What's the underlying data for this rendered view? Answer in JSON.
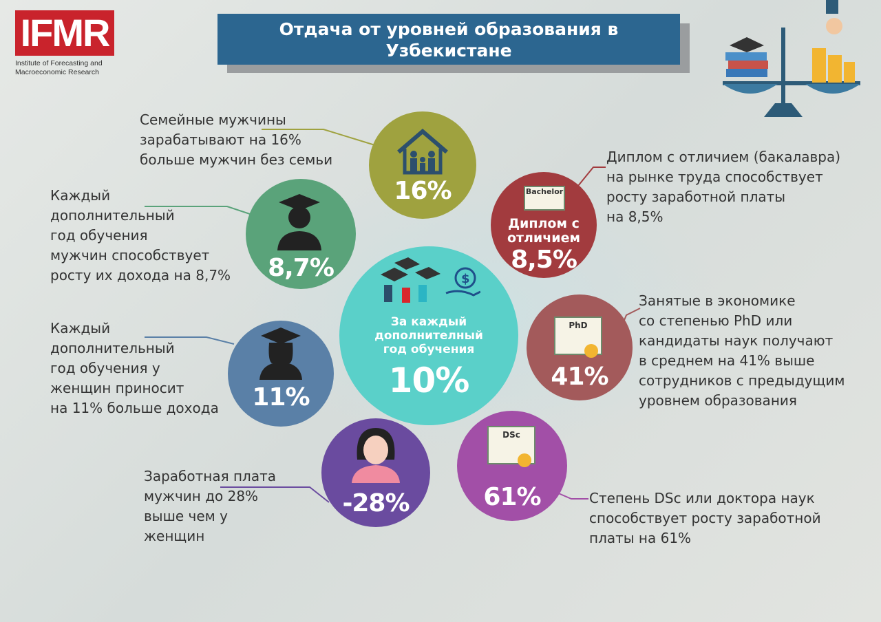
{
  "logo": {
    "text": "IFMR",
    "subtitle_line1": "Institute of Forecasting and",
    "subtitle_line2": "Macroeconomic Research"
  },
  "title": {
    "line1": "Отдача от уровней образования в",
    "line2": "Узбекистане"
  },
  "center": {
    "label_line1": "За каждый",
    "label_line2": "дополнителный",
    "label_line3": "год обучения",
    "value": "10%",
    "color": "#5ad0c9"
  },
  "items": [
    {
      "id": "family-men",
      "value": "16%",
      "color": "#9fa23f",
      "icon": "house-family-icon",
      "text": [
        "Семейные мужчины",
        "зарабатывают на 16%",
        "больше мужчин без семьи"
      ]
    },
    {
      "id": "men-year",
      "value": "8,7%",
      "color": "#5aa37a",
      "icon": "male-graduate-icon",
      "text": [
        "Каждый",
        "дополнительный",
        "год обучения",
        "мужчин способствует",
        "росту их дохода на  8,7%"
      ]
    },
    {
      "id": "women-year",
      "value": "11%",
      "color": "#5a80a7",
      "icon": "female-graduate-icon",
      "text": [
        "Каждый",
        "дополнительный",
        "год обучения у",
        "женщин приносит",
        "на 11% больше дохода"
      ]
    },
    {
      "id": "gender-gap",
      "value": "-28%",
      "color": "#6a4b9f",
      "icon": "woman-avatar-icon",
      "text": [
        "Заработная плата",
        "мужчин  до 28%",
        "выше чем у",
        "женщин"
      ]
    },
    {
      "id": "honors",
      "value": "8,5%",
      "color": "#a23b3e",
      "icon": "bachelor-diploma-icon",
      "badge": "Bachelor",
      "label_line1": "Диплом с",
      "label_line2": "отличием",
      "text": [
        "Диплом с отличием (бакалавра)",
        "на рынке труда способствует",
        "росту заработной платы",
        "на 8,5%"
      ]
    },
    {
      "id": "phd",
      "value": "41%",
      "color": "#a35a5b",
      "icon": "phd-diploma-icon",
      "badge": "PhD",
      "text": [
        "Занятые в экономике",
        "со степенью PhD или",
        "кандидаты наук  получают",
        "в среднем на 41% выше",
        "сотрудников с предыдущим",
        "уровнем образования"
      ]
    },
    {
      "id": "dsc",
      "value": "61%",
      "color": "#a24fa7",
      "icon": "dsc-diploma-icon",
      "badge": "DSc",
      "text": [
        "Степень DSc или доктора наук",
        "способствует росту заработной",
        "платы на 61%"
      ]
    }
  ]
}
